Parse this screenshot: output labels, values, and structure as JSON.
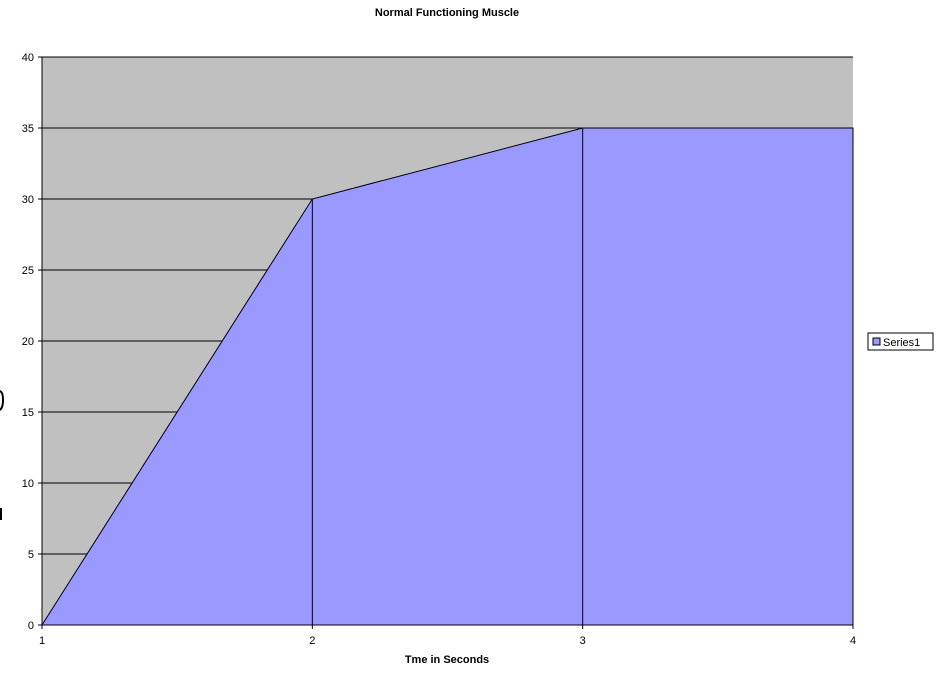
{
  "chart_data": {
    "type": "area",
    "title": "Normal Functioning Muscle",
    "xlabel": "Tme in Seconds",
    "ylabel": "",
    "x": [
      1,
      2,
      3,
      4
    ],
    "series": [
      {
        "name": "Series1",
        "values": [
          0,
          30,
          35,
          35
        ],
        "color": "#9999ff"
      }
    ],
    "xlim": [
      1,
      4
    ],
    "ylim": [
      0,
      40
    ],
    "yticks": [
      0,
      5,
      10,
      15,
      20,
      25,
      30,
      35,
      40
    ],
    "xticks": [
      1,
      2,
      3,
      4
    ],
    "grid": "horizontal",
    "plot_background": "#c0c0c0",
    "legend": "right"
  }
}
